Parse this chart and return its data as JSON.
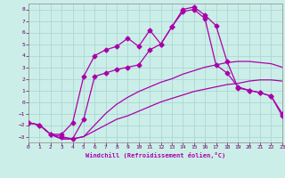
{
  "xlabel": "Windchill (Refroidissement éolien,°C)",
  "bg_color": "#cceee8",
  "grid_color": "#aad8d4",
  "line_color": "#aa00aa",
  "xlim": [
    0,
    23
  ],
  "ylim": [
    -3.5,
    8.5
  ],
  "xticks": [
    0,
    1,
    2,
    3,
    4,
    5,
    6,
    7,
    8,
    9,
    10,
    11,
    12,
    13,
    14,
    15,
    16,
    17,
    18,
    19,
    20,
    21,
    22,
    23
  ],
  "yticks": [
    -3,
    -2,
    -1,
    0,
    1,
    2,
    3,
    4,
    5,
    6,
    7,
    8
  ],
  "line1_x": [
    0,
    1,
    2,
    3,
    4,
    5,
    6,
    7,
    8,
    9,
    10,
    11,
    12,
    13,
    14,
    15,
    16,
    17,
    18,
    19,
    20,
    21,
    22,
    23
  ],
  "line1_y": [
    -1.8,
    -2.0,
    -2.8,
    -3.2,
    -3.2,
    -3.0,
    -2.5,
    -2.0,
    -1.5,
    -1.2,
    -0.8,
    -0.4,
    0.0,
    0.3,
    0.6,
    0.9,
    1.1,
    1.3,
    1.5,
    1.6,
    1.8,
    1.9,
    1.9,
    1.8
  ],
  "line2_x": [
    0,
    1,
    2,
    3,
    4,
    5,
    6,
    7,
    8,
    9,
    10,
    11,
    12,
    13,
    14,
    15,
    16,
    17,
    18,
    19,
    20,
    21,
    22,
    23
  ],
  "line2_y": [
    -1.8,
    -2.0,
    -2.8,
    -3.2,
    -3.2,
    -3.0,
    -2.0,
    -1.0,
    -0.2,
    0.4,
    0.9,
    1.3,
    1.7,
    2.0,
    2.4,
    2.7,
    3.0,
    3.2,
    3.4,
    3.5,
    3.5,
    3.4,
    3.3,
    3.0
  ],
  "line3_x": [
    0,
    1,
    2,
    3,
    4,
    5,
    6,
    7,
    8,
    9,
    10,
    11,
    12,
    13,
    14,
    15,
    16,
    17,
    18,
    19,
    20,
    21,
    22,
    23
  ],
  "line3_y": [
    -1.8,
    -2.0,
    -2.8,
    -3.0,
    -3.2,
    -1.5,
    2.2,
    2.5,
    2.8,
    3.0,
    3.2,
    4.5,
    5.0,
    6.5,
    8.0,
    8.2,
    7.5,
    6.6,
    3.5,
    1.2,
    1.0,
    0.8,
    0.5,
    -1.0
  ],
  "line4_x": [
    0,
    1,
    2,
    3,
    4,
    5,
    6,
    7,
    8,
    9,
    10,
    11,
    12,
    13,
    14,
    15,
    16,
    17,
    18,
    19,
    20,
    21,
    22,
    23
  ],
  "line4_y": [
    -1.8,
    -2.0,
    -2.8,
    -2.8,
    -1.8,
    2.2,
    4.0,
    4.5,
    4.8,
    5.5,
    4.8,
    6.2,
    5.0,
    6.5,
    7.8,
    8.0,
    7.2,
    3.2,
    2.5,
    1.3,
    1.0,
    0.8,
    0.5,
    -1.2
  ]
}
